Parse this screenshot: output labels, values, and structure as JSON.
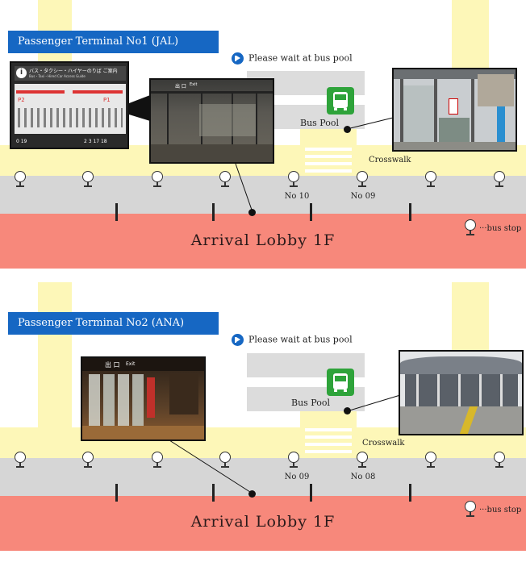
{
  "terminals": [
    {
      "title": "Passenger Terminal No1 (JAL)",
      "wait_text": "Please wait at bus pool",
      "bus_pool_label": "Bus Pool",
      "crosswalk_label": "Crosswalk",
      "stop_labels": [
        "No 10",
        "No 09"
      ],
      "lobby_label": "Arrival Lobby 1F",
      "legend_label": "bus stop",
      "photos": [
        "terminal-sign-photo",
        "exit-door-photo",
        "bus-pool-shelter-photo"
      ]
    },
    {
      "title": "Passenger Terminal No2 (ANA)",
      "wait_text": "Please wait at bus pool",
      "bus_pool_label": "Bus Pool",
      "crosswalk_label": "Crosswalk",
      "stop_labels": [
        "No 09",
        "No 08"
      ],
      "lobby_label": "Arrival Lobby 1F",
      "legend_label": "bus stop",
      "photos": [
        "exit-door-photo",
        "terminal-exterior-photo"
      ]
    }
  ],
  "sign_photo_texts": {
    "header": "バス・タクシー・ハイヤーのりば ご案内",
    "subheader": "Bus・Taxi・Hired Car Access Guide",
    "p2": "P2",
    "p1": "P1",
    "numbers_left": "0 19",
    "numbers_right": "2 3 17 18",
    "info": "i"
  },
  "door_photo_texts": {
    "exit": "出 口",
    "exit_en": "Exit"
  },
  "colors": {
    "title_bar": "#1667c3",
    "lobby": "#f7887b",
    "road": "#fdf7b8",
    "lane": "#d6d6d6",
    "bus_icon": "#2ea33a"
  },
  "icons": [
    "info-play-icon",
    "bus-icon",
    "bus-stop-icon"
  ]
}
